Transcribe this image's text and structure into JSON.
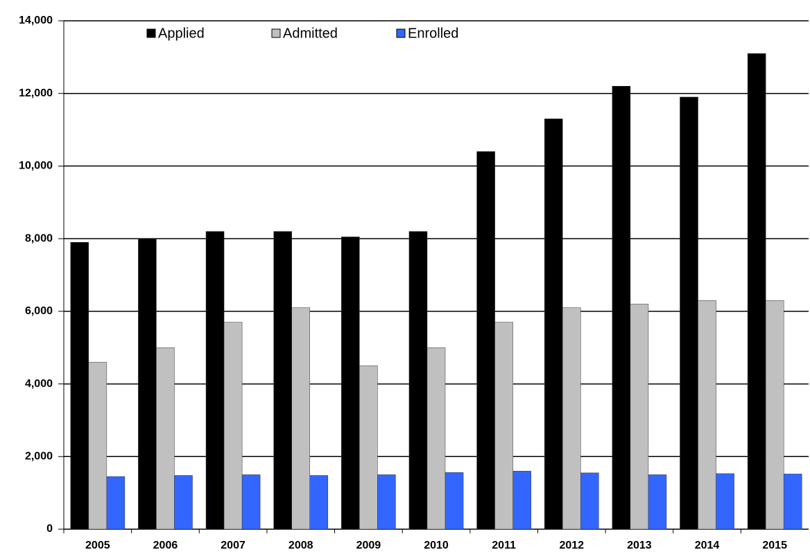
{
  "chart_data": {
    "type": "bar",
    "categories": [
      "2005",
      "2006",
      "2007",
      "2008",
      "2009",
      "2010",
      "2011",
      "2012",
      "2013",
      "2014",
      "2015"
    ],
    "series": [
      {
        "name": "Applied",
        "color": "#000000",
        "values": [
          7900,
          8000,
          8200,
          8200,
          8050,
          8200,
          10400,
          11300,
          12200,
          11900,
          13100
        ]
      },
      {
        "name": "Admitted",
        "color": "#c0c0c0",
        "values": [
          4600,
          5000,
          5700,
          6100,
          4500,
          5000,
          5700,
          6100,
          6200,
          6300,
          6300
        ]
      },
      {
        "name": "Enrolled",
        "color": "#3366ff",
        "values": [
          1450,
          1480,
          1500,
          1480,
          1500,
          1560,
          1600,
          1550,
          1500,
          1530,
          1520
        ]
      }
    ],
    "ylim": [
      0,
      14000
    ],
    "yticks": [
      0,
      {
        "value": 2000,
        "label": "2,000"
      },
      {
        "value": 4000,
        "label": "4,000"
      },
      {
        "value": 6000,
        "label": "6,000"
      },
      {
        "value": 8000,
        "label": "8,000"
      },
      {
        "value": 10000,
        "label": "10,000"
      },
      {
        "value": 12000,
        "label": "12,000"
      },
      {
        "value": 14000,
        "label": "14,000"
      }
    ],
    "grid": true,
    "legend": "top"
  }
}
